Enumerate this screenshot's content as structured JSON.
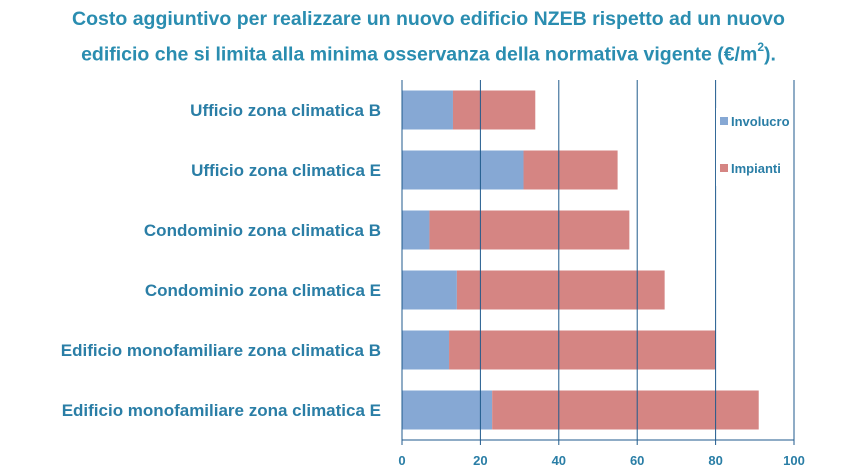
{
  "title": {
    "line1": "Costo aggiuntivo per realizzare un nuovo edificio NZEB rispetto ad un nuovo",
    "line2_text": "edificio che si limita alla minima osservanza della normativa vigente (€/m",
    "line2_sup": "2",
    "line2_end": ")."
  },
  "chart_data": {
    "type": "bar",
    "orientation": "horizontal",
    "stacked": true,
    "title": "Costo aggiuntivo per realizzare un nuovo edificio NZEB rispetto ad un nuovo edificio che si limita alla minima osservanza della normativa vigente (€/m2).",
    "categories": [
      "Ufficio zona climatica B",
      "Ufficio zona climatica E",
      "Condominio zona climatica B",
      "Condominio zona climatica E",
      "Edificio monofamiliare zona climatica B",
      "Edificio monofamiliare zona climatica E"
    ],
    "series": [
      {
        "name": "Involucro",
        "color": "#86a8d4",
        "values": [
          13,
          31,
          7,
          14,
          12,
          23
        ]
      },
      {
        "name": "Impianti",
        "color": "#d58583",
        "values": [
          21,
          24,
          51,
          53,
          68,
          68
        ]
      }
    ],
    "xlim": [
      0,
      100
    ],
    "xticks": [
      0,
      20,
      40,
      60,
      80,
      100
    ],
    "xlabel": "",
    "ylabel": "",
    "grid": "vertical",
    "legend_position": "right"
  }
}
